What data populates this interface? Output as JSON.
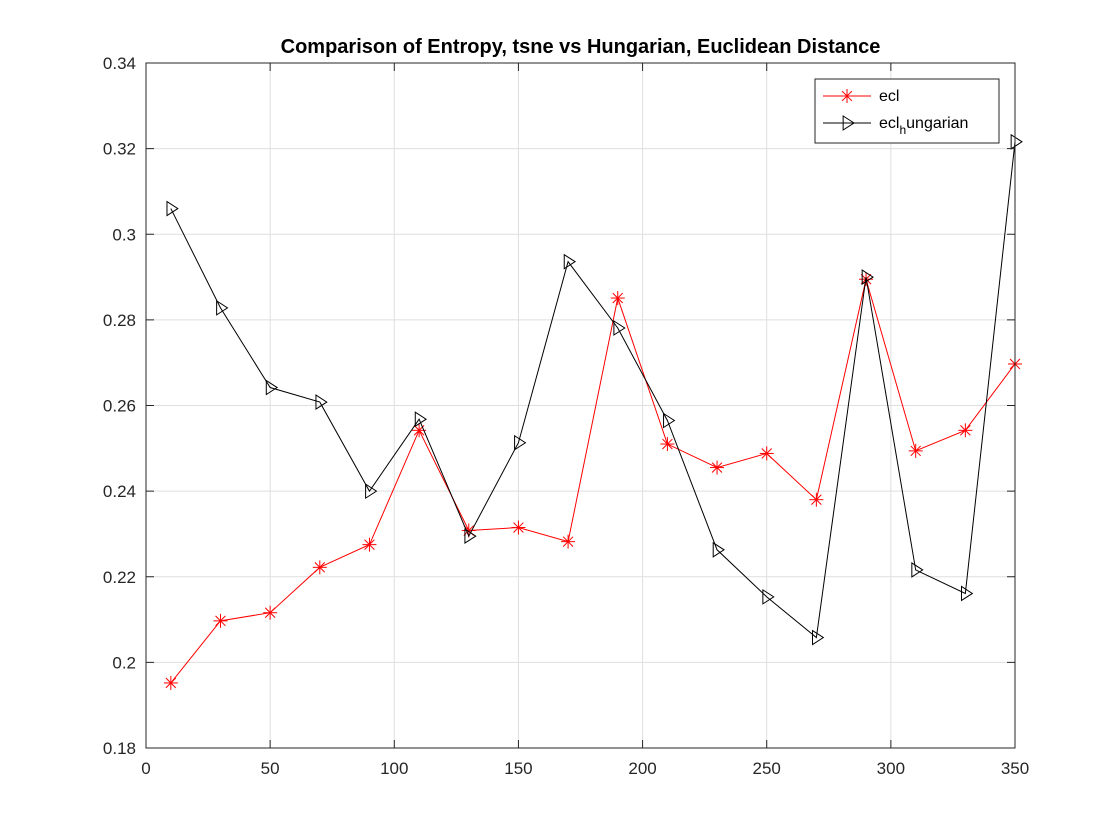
{
  "chart_data": {
    "type": "line",
    "title": "Comparison of Entropy, tsne vs Hungarian, Euclidean Distance",
    "xlabel": "",
    "ylabel": "",
    "xlim": [
      0,
      350
    ],
    "ylim": [
      0.18,
      0.34
    ],
    "xticks": [
      0,
      50,
      100,
      150,
      200,
      250,
      300,
      350
    ],
    "yticks": [
      0.18,
      0.2,
      0.22,
      0.24,
      0.26,
      0.28,
      0.3,
      0.32,
      0.34
    ],
    "xtick_labels": [
      "0",
      "50",
      "100",
      "150",
      "200",
      "250",
      "300",
      "350"
    ],
    "ytick_labels": [
      "0.18",
      "0.2",
      "0.22",
      "0.24",
      "0.26",
      "0.28",
      "0.3",
      "0.32",
      "0.34"
    ],
    "grid": true,
    "legend_position": "top-right",
    "x": [
      10,
      30,
      50,
      70,
      90,
      110,
      130,
      150,
      170,
      190,
      210,
      230,
      250,
      270,
      290,
      310,
      330,
      350
    ],
    "series": [
      {
        "name": "ecl",
        "color": "#ff0000",
        "marker": "asterisk",
        "values": [
          0.1952,
          0.2097,
          0.2116,
          0.2222,
          0.2275,
          0.2542,
          0.2308,
          0.2315,
          0.2282,
          0.2851,
          0.251,
          0.2455,
          0.2488,
          0.238,
          0.2895,
          0.2494,
          0.2542,
          0.2697
        ]
      },
      {
        "name": "ecl",
        "name_subscript": "h",
        "name_suffix": "ungarian",
        "color": "#000000",
        "marker": "triangle-right",
        "values": [
          0.306,
          0.2828,
          0.2642,
          0.2608,
          0.24,
          0.2568,
          0.2295,
          0.2513,
          0.2936,
          0.2781,
          0.2565,
          0.2263,
          0.2153,
          0.2058,
          0.29,
          0.2216,
          0.2161,
          0.3216
        ]
      }
    ]
  }
}
